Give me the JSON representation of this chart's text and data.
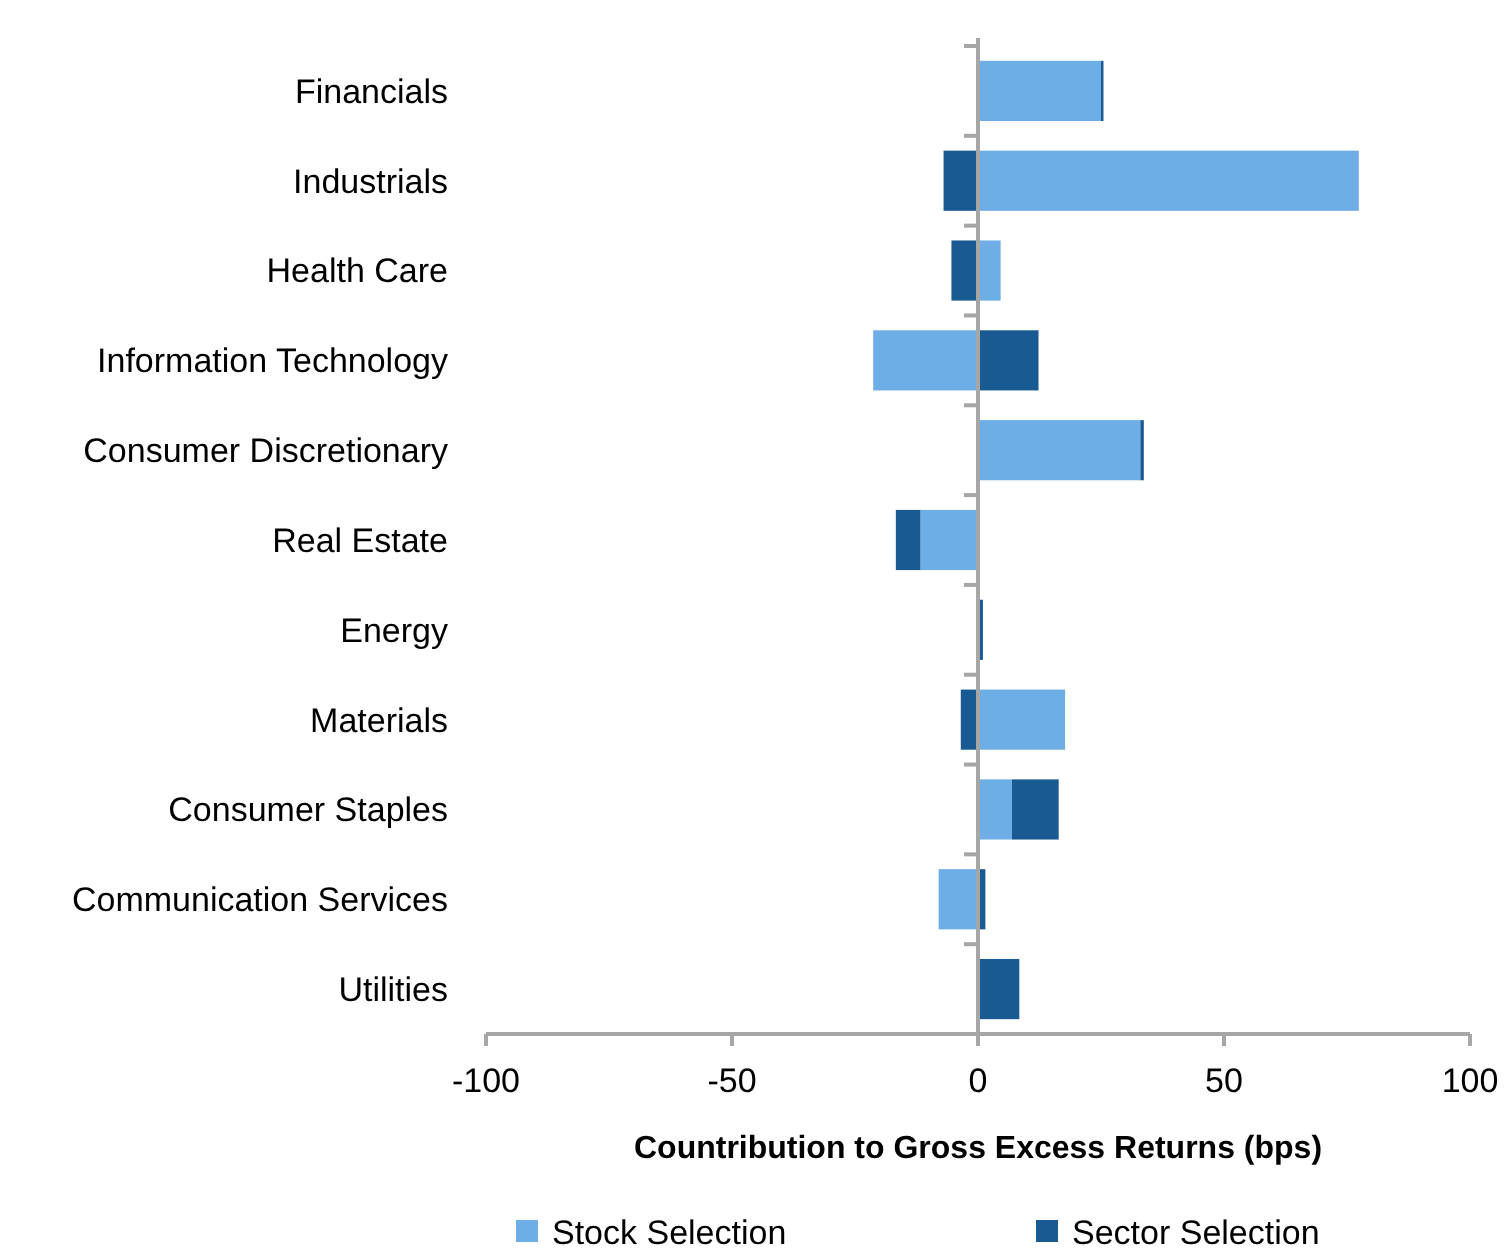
{
  "chart_data": {
    "type": "bar",
    "orientation": "horizontal",
    "stacked": true,
    "categories": [
      "Financials",
      "Industrials",
      "Health Care",
      "Information Technology",
      "Consumer Discretionary",
      "Real Estate",
      "Energy",
      "Materials",
      "Consumer Staples",
      "Communication Services",
      "Utilities"
    ],
    "series": [
      {
        "name": "Stock Selection",
        "color": "#6daee6",
        "values": [
          25,
          77.4,
          4.6,
          -21.3,
          33,
          -11.7,
          null,
          17.7,
          6.9,
          -8,
          0
        ]
      },
      {
        "name": "Sector Selection",
        "color": "#1a5a93",
        "values": [
          0.5,
          -7,
          -5.4,
          12.3,
          0.7,
          -5,
          1,
          -3.5,
          9.5,
          1.5,
          8.4
        ]
      }
    ],
    "xlabel": "Countribution to Gross Excess Returns (bps)",
    "xlim": [
      -100,
      100
    ],
    "xticks": [
      -100,
      -50,
      0,
      50,
      100
    ],
    "legend": "bottom"
  }
}
